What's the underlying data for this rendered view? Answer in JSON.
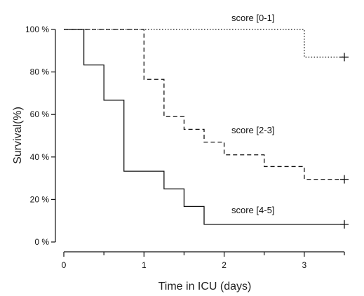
{
  "chart_data": {
    "type": "line",
    "subtype": "kaplan-meier-step",
    "xlabel": "Time in ICU (days)",
    "ylabel": "Survival(%)",
    "xlim": [
      0,
      3.5
    ],
    "ylim": [
      0,
      100
    ],
    "x_ticks": [
      "0",
      "1",
      "2",
      "3"
    ],
    "y_ticks": [
      "0 %",
      "20 %",
      "40 %",
      "60 %",
      "80 %",
      "100 %"
    ],
    "grid": false,
    "series": [
      {
        "name": "score [0-1]",
        "line_style": "dotted",
        "steps": [
          {
            "x": 0,
            "y": 100
          },
          {
            "x": 3,
            "y": 87
          }
        ],
        "end_x": 3.5,
        "censored": [
          {
            "x": 3.5,
            "y": 87
          }
        ]
      },
      {
        "name": "score [2-3]",
        "line_style": "dashed",
        "steps": [
          {
            "x": 0,
            "y": 100
          },
          {
            "x": 1,
            "y": 76.5
          },
          {
            "x": 1.25,
            "y": 59
          },
          {
            "x": 1.5,
            "y": 53
          },
          {
            "x": 1.75,
            "y": 47
          },
          {
            "x": 2,
            "y": 41
          },
          {
            "x": 2.5,
            "y": 35.5
          },
          {
            "x": 3,
            "y": 29.5
          }
        ],
        "end_x": 3.5,
        "censored": [
          {
            "x": 3.5,
            "y": 29.5
          }
        ]
      },
      {
        "name": "score [4-5]",
        "line_style": "solid",
        "steps": [
          {
            "x": 0,
            "y": 100
          },
          {
            "x": 0.25,
            "y": 83.3
          },
          {
            "x": 0.5,
            "y": 66.7
          },
          {
            "x": 0.75,
            "y": 33.3
          },
          {
            "x": 1.25,
            "y": 25
          },
          {
            "x": 1.5,
            "y": 16.7
          },
          {
            "x": 1.75,
            "y": 8.3
          }
        ],
        "end_x": 3.5,
        "censored": [
          {
            "x": 3.5,
            "y": 8.3
          }
        ]
      }
    ]
  }
}
